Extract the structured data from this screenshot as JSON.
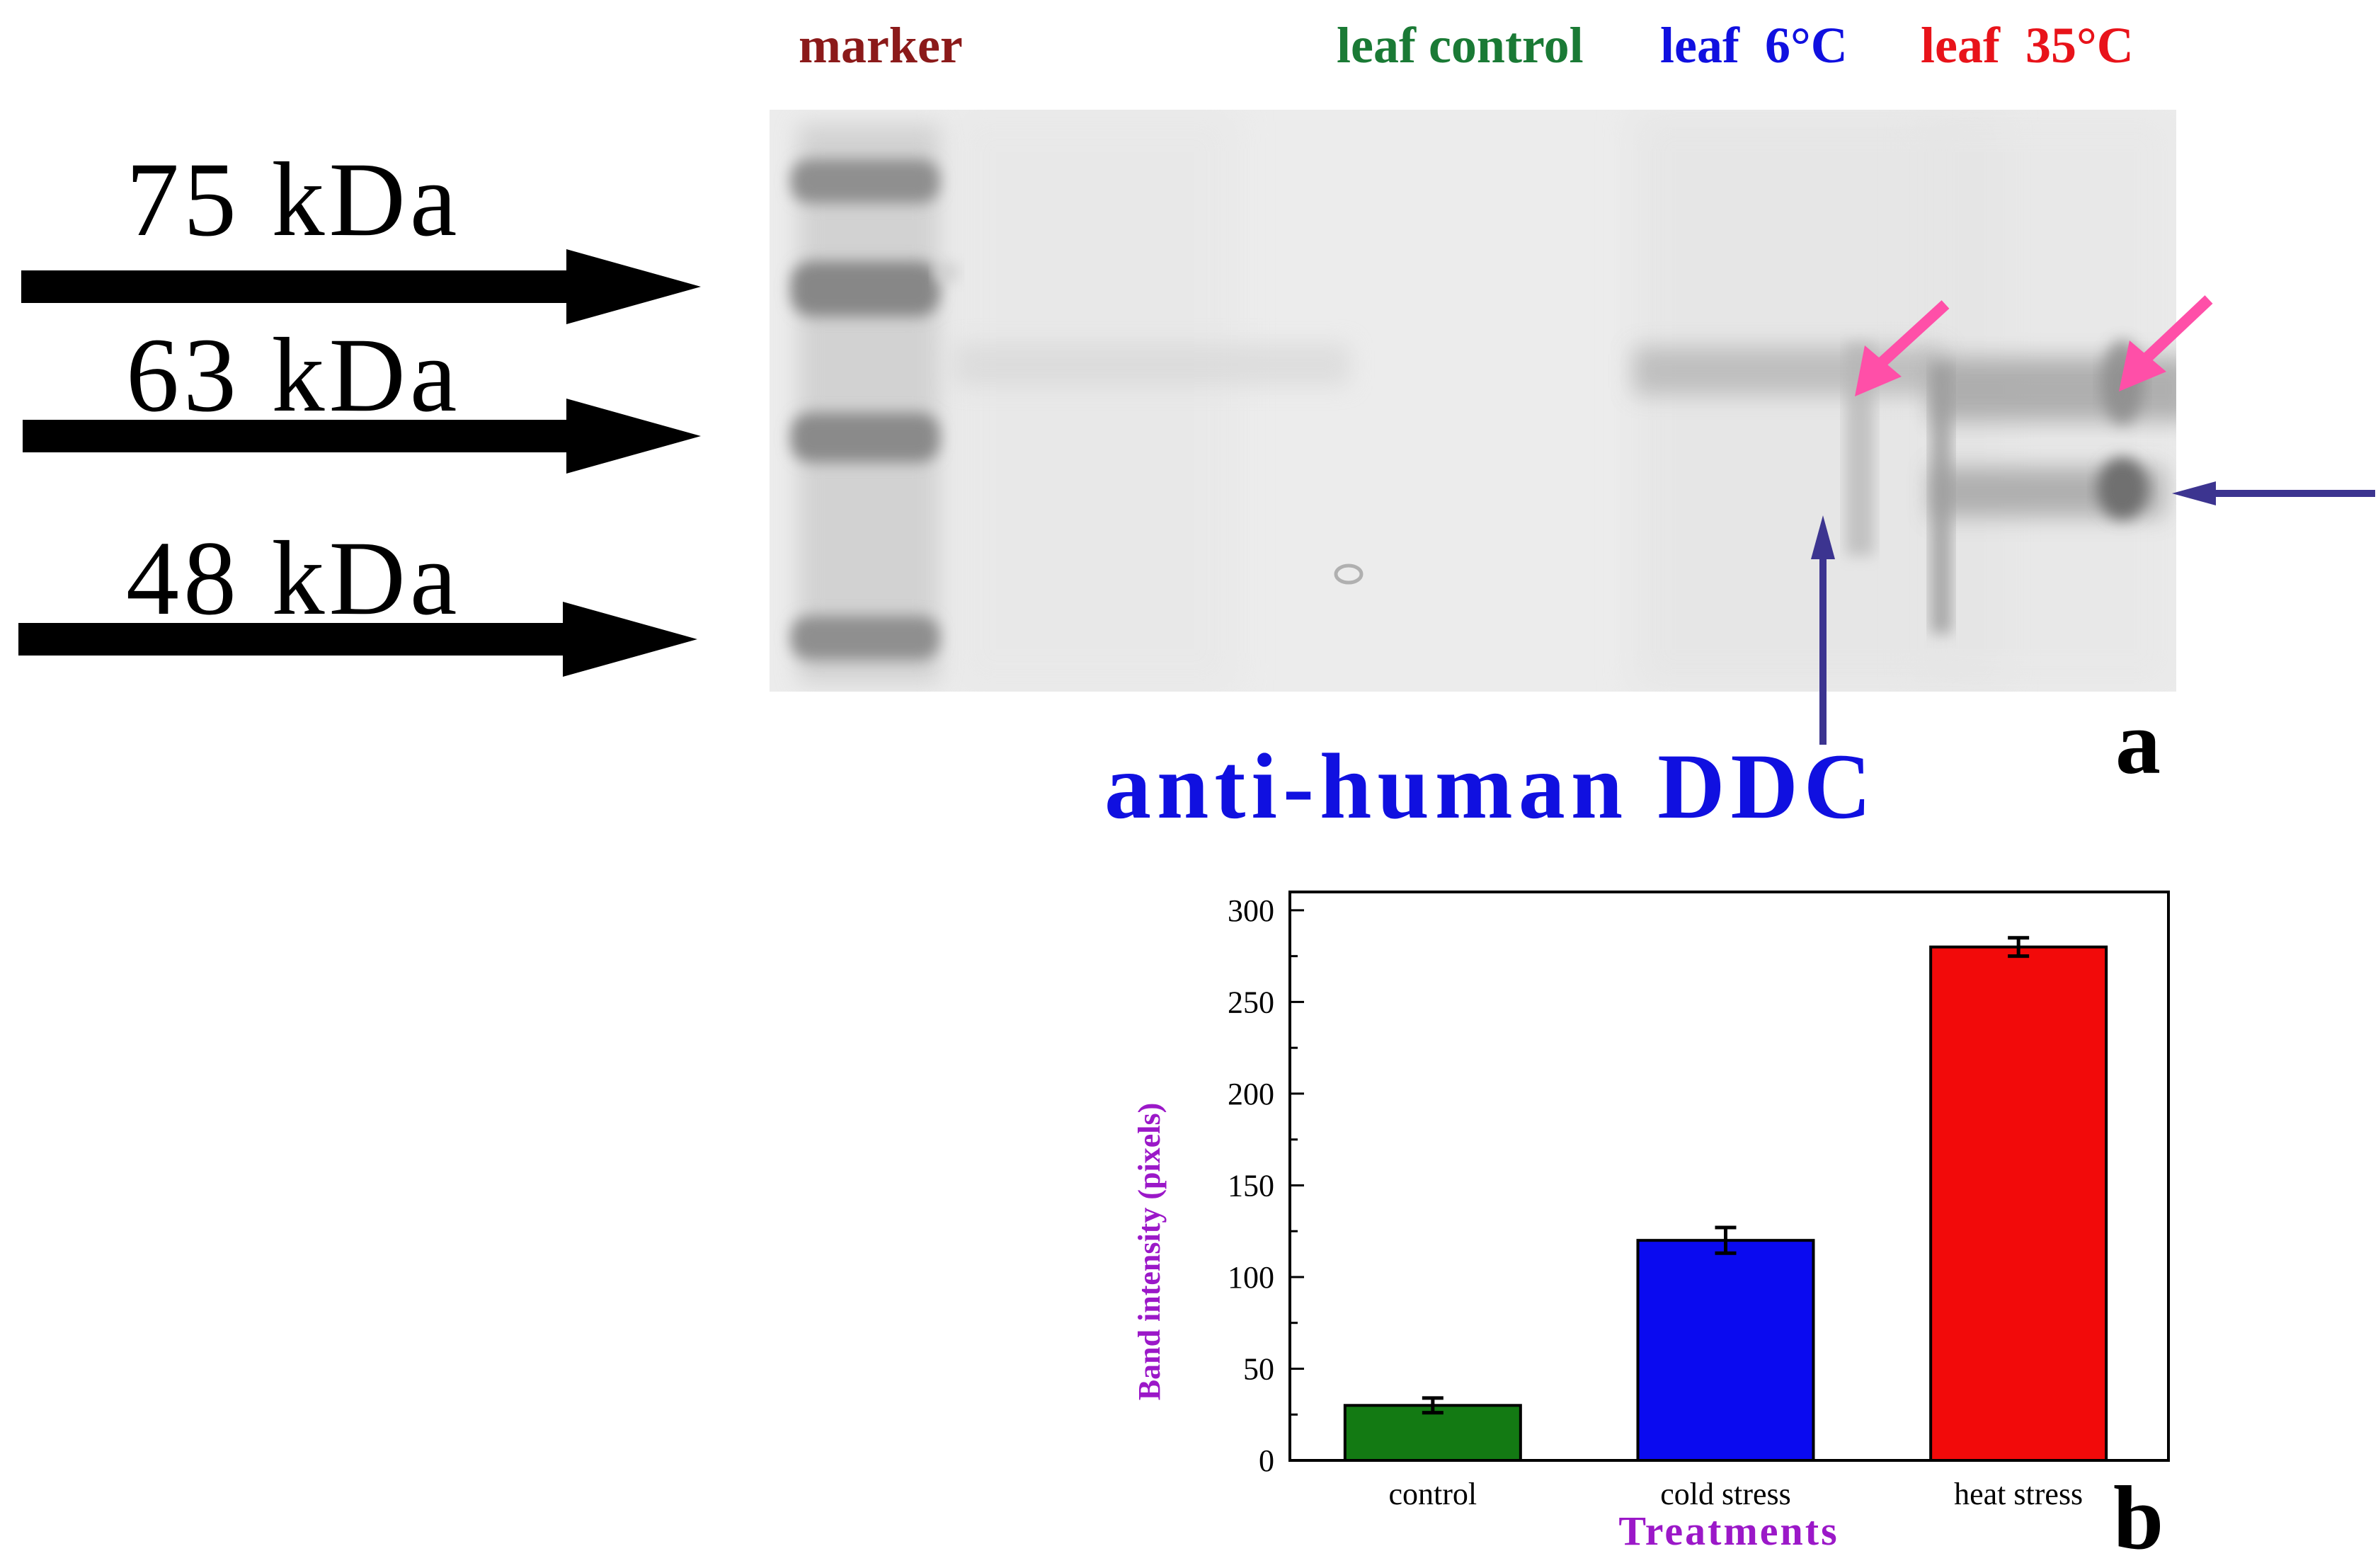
{
  "figure": {
    "panel_a": {
      "lane_labels": [
        {
          "text": "marker",
          "color": "#8b1a1a"
        },
        {
          "text": "leaf control",
          "color": "#1a7a35"
        },
        {
          "text": "leaf  6°C",
          "color": "#1010e0"
        },
        {
          "text": "leaf  35°C",
          "color": "#e8131a"
        }
      ],
      "size_markers": [
        "75 kDa",
        "63 kDa",
        "48 kDa"
      ],
      "antibody_label": "anti-human DDC",
      "panel_letter": "a",
      "colors": {
        "arrow_black": "#000000",
        "arrow_pink": "#ff4fa8",
        "arrow_navy": "#3c3490",
        "gel_bg": "#ececec"
      }
    },
    "panel_b": {
      "panel_letter": "b"
    }
  },
  "chart_data": {
    "type": "bar",
    "categories": [
      "control",
      "cold stress",
      "heat stress"
    ],
    "values": [
      30,
      120,
      280
    ],
    "errors": [
      4,
      7,
      5
    ],
    "colors": [
      "#137a13",
      "#0a0af0",
      "#f20a0a"
    ],
    "title": "",
    "xlabel": "Treatments",
    "ylabel": "Band intensity (pixels)",
    "ylim": [
      0,
      310
    ],
    "yticks": [
      0,
      50,
      100,
      150,
      200,
      250,
      300
    ],
    "grid": false
  }
}
